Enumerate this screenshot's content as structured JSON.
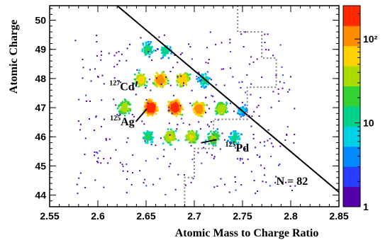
{
  "chart_data": {
    "type": "heatmap",
    "xlabel": "Atomic Mass to Charge Ratio",
    "ylabel": "Atomic Charge",
    "xlim": [
      2.55,
      2.85
    ],
    "ylim": [
      43.6,
      50.5
    ],
    "x_ticks": [
      "2.55",
      "2.6",
      "2.65",
      "2.7",
      "2.75",
      "2.8",
      "2.85"
    ],
    "x_tick_values": [
      2.55,
      2.6,
      2.65,
      2.7,
      2.75,
      2.8,
      2.85
    ],
    "y_ticks": [
      "44",
      "45",
      "46",
      "47",
      "48",
      "49",
      "50"
    ],
    "y_tick_values": [
      44,
      45,
      46,
      47,
      48,
      49,
      50
    ],
    "colorbar": {
      "scale": "log",
      "range": [
        1,
        250
      ],
      "ticks": [
        "1",
        "10",
        "10²"
      ],
      "tick_values": [
        1,
        10,
        100
      ],
      "colors": [
        "#5500aa",
        "#2a3cff",
        "#008cff",
        "#00d2e6",
        "#00d28c",
        "#32d232",
        "#aadc00",
        "#ffd200",
        "#ff8c00",
        "#ff2800"
      ]
    },
    "clusters": [
      {
        "x": 2.652,
        "y": 49.0,
        "peak": 15
      },
      {
        "x": 2.67,
        "y": 48.95,
        "peak": 12
      },
      {
        "x": 2.645,
        "y": 47.95,
        "peak": 55
      },
      {
        "x": 2.665,
        "y": 47.95,
        "peak": 110
      },
      {
        "x": 2.688,
        "y": 47.95,
        "peak": 70
      },
      {
        "x": 2.71,
        "y": 47.95,
        "peak": 12
      },
      {
        "x": 2.628,
        "y": 47.0,
        "peak": 40
      },
      {
        "x": 2.655,
        "y": 47.0,
        "peak": 200
      },
      {
        "x": 2.68,
        "y": 47.0,
        "peak": 190
      },
      {
        "x": 2.705,
        "y": 46.95,
        "peak": 110
      },
      {
        "x": 2.728,
        "y": 46.95,
        "peak": 40
      },
      {
        "x": 2.75,
        "y": 46.9,
        "peak": 6
      },
      {
        "x": 2.652,
        "y": 46.0,
        "peak": 15
      },
      {
        "x": 2.675,
        "y": 46.0,
        "peak": 45
      },
      {
        "x": 2.697,
        "y": 46.0,
        "peak": 45
      },
      {
        "x": 2.72,
        "y": 45.95,
        "peak": 30
      },
      {
        "x": 2.742,
        "y": 45.95,
        "peak": 12
      }
    ],
    "cut_line": {
      "from": [
        2.62,
        50.5
      ],
      "to": [
        2.85,
        44.1
      ]
    },
    "dotted_boundary": [
      [
        2.745,
        50.5
      ],
      [
        2.745,
        49.6
      ],
      [
        2.77,
        49.6
      ],
      [
        2.77,
        48.7
      ],
      [
        2.785,
        48.7
      ],
      [
        2.785,
        47.7
      ],
      [
        2.755,
        47.7
      ],
      [
        2.755,
        46.6
      ],
      [
        2.72,
        46.6
      ],
      [
        2.72,
        45.6
      ],
      [
        2.7,
        45.6
      ],
      [
        2.7,
        44.6
      ],
      [
        2.69,
        44.6
      ],
      [
        2.69,
        43.6
      ]
    ],
    "annotations": [
      {
        "sup": "127",
        "text": "Cd",
        "x": 2.638,
        "y": 47.6
      },
      {
        "sup": "125",
        "text": "Ag",
        "x": 2.638,
        "y": 46.4
      },
      {
        "sup": "125",
        "text": "Pd",
        "x": 2.732,
        "y": 45.5
      },
      {
        "sup": "",
        "text": "N = 82",
        "x": 2.785,
        "y": 44.35
      }
    ]
  }
}
